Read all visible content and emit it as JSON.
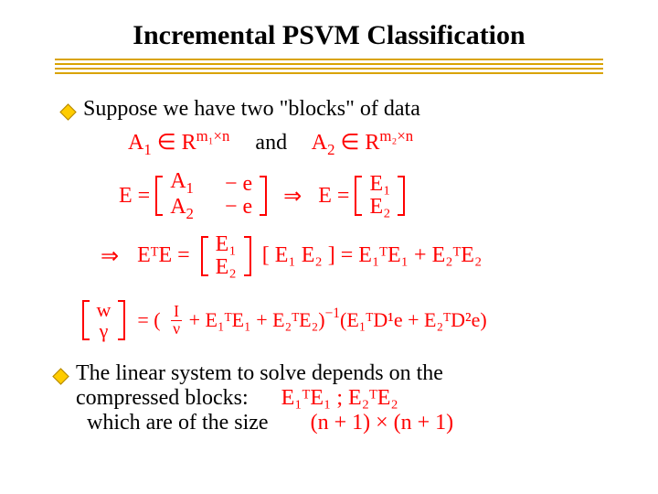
{
  "title": "Incremental PSVM Classification",
  "title_fontsize": 30,
  "underline": {
    "color": "#d9a300",
    "line_count": 4,
    "line_height": 2,
    "line_gap": 3
  },
  "bullet": {
    "color": "#ffcc00",
    "border": "#b38600"
  },
  "text_fontsize": 24,
  "math_color": "#ff0000",
  "bullets": [
    "Suppose we have two \"blocks\" of data",
    "The linear system to solve depends on the compressed blocks:"
  ],
  "lines": {
    "and": "and",
    "A1": "A",
    "sub1": "1",
    "in1": "∈",
    "R": "R",
    "m1n": "m₁×n",
    "A2": "A",
    "sub2": "2",
    "in2": "∈",
    "m2n": "m₂×n",
    "E_eq": "E =",
    "me": "− e",
    "imp": "⇒",
    "Estack_top": "E₁",
    "Estack_bot": "E₂",
    "ETE": "EᵀE =",
    "row_mat": "[ E₁   E₂ ] = E₁ᵀE₁ + E₂ᵀE₂",
    "wi_top": "w",
    "wi_bot": "γ",
    "eq_paren_open": "= (",
    "Inu": "I",
    "nu": "ν",
    "plus": "+ E₁ᵀE₁ + E₂ᵀE₂)",
    "inv": "−1",
    "tail": "(E₁ᵀD¹e + E₂ᵀD²e)",
    "which": "which are of the size",
    "size": "(n + 1) × (n + 1)",
    "EE_list": "E₁ᵀE₁ ;  E₂ᵀE₂"
  }
}
